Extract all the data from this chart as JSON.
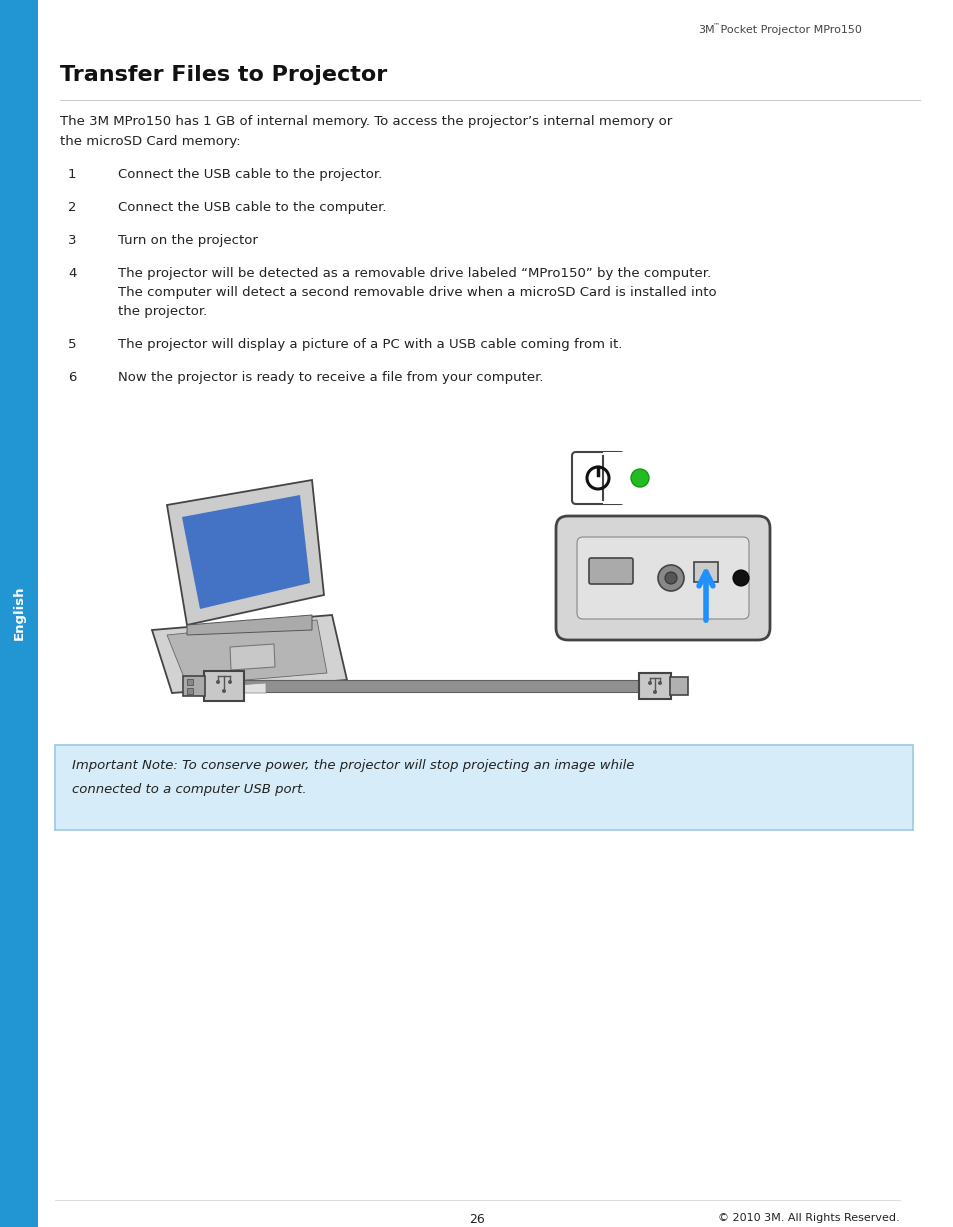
{
  "page_bg": "#ffffff",
  "sidebar_color": "#2196d3",
  "sidebar_text": "English",
  "header_text_3m": "3M",
  "header_text_tm": "™",
  "header_text_rest": " Pocket Projector MPro150",
  "title": "Transfer Files to Projector",
  "intro_line1": "The 3M MPro150 has 1 GB of internal memory. To access the projector’s internal memory or",
  "intro_line2": "the microSD Card memory:",
  "steps": [
    {
      "num": "1",
      "lines": [
        "Connect the USB cable to the projector."
      ]
    },
    {
      "num": "2",
      "lines": [
        "Connect the USB cable to the computer."
      ]
    },
    {
      "num": "3",
      "lines": [
        "Turn on the projector"
      ]
    },
    {
      "num": "4",
      "lines": [
        "The projector will be detected as a removable drive labeled “MPro150” by the computer.",
        "The computer will detect a second removable drive when a microSD Card is installed into",
        "the projector."
      ]
    },
    {
      "num": "5",
      "lines": [
        "The projector will display a picture of a PC with a USB cable coming from it."
      ]
    },
    {
      "num": "6",
      "lines": [
        "Now the projector is ready to receive a file from your computer."
      ]
    }
  ],
  "note_bg": "#d6ecf8",
  "note_border": "#9ac8e0",
  "note_line1": "Important Note: To conserve power, the projector will stop projecting an image while",
  "note_line2": "connected to a computer USB port.",
  "footer_page": "26",
  "footer_right": "© 2010 3M. All Rights Reserved.",
  "text_color": "#222222",
  "body_fs": 9.5,
  "title_fs": 16
}
